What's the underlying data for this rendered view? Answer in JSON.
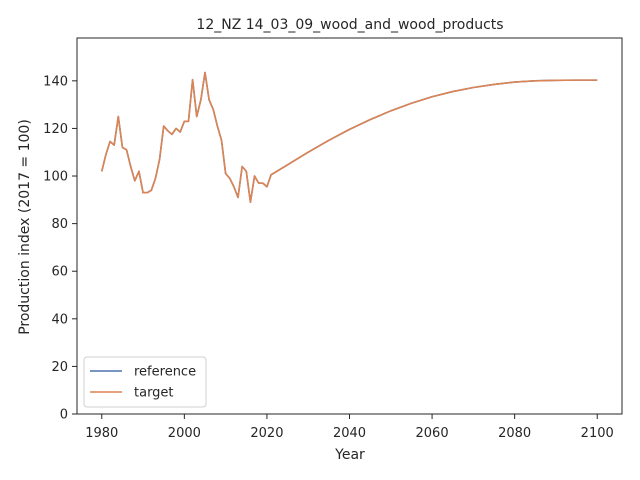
{
  "chart_data": {
    "type": "line",
    "title": "12_NZ 14_03_09_wood_and_wood_products",
    "xlabel": "Year",
    "ylabel": "Production index (2017 = 100)",
    "xlim": [
      1974,
      2106
    ],
    "ylim": [
      0,
      158
    ],
    "xticks": [
      1980,
      2000,
      2020,
      2040,
      2060,
      2080,
      2100
    ],
    "yticks": [
      0,
      20,
      40,
      60,
      80,
      100,
      120,
      140
    ],
    "grid": false,
    "legend_position": "lower left",
    "series": [
      {
        "name": "reference",
        "color": "#4c72b0",
        "x": [
          1980,
          1981,
          1982,
          1983,
          1984,
          1985,
          1986,
          1987,
          1988,
          1989,
          1990,
          1991,
          1992,
          1993,
          1994,
          1995,
          1996,
          1997,
          1998,
          1999,
          2000,
          2001,
          2002,
          2003,
          2004,
          2005,
          2006,
          2007,
          2008,
          2009,
          2010,
          2011,
          2012,
          2013,
          2014,
          2015,
          2016,
          2017,
          2018,
          2019,
          2020,
          2021,
          2025,
          2030,
          2035,
          2040,
          2045,
          2050,
          2055,
          2060,
          2065,
          2070,
          2075,
          2080,
          2085,
          2090,
          2095,
          2100
        ],
        "y": [
          102,
          109,
          114.5,
          113,
          125,
          112,
          111,
          104,
          98,
          102,
          93,
          93,
          94,
          99,
          107,
          121,
          119,
          117.5,
          120,
          118.5,
          123,
          123,
          140.5,
          125,
          132,
          143.5,
          132,
          128,
          121,
          115,
          101,
          99,
          95.5,
          91,
          104,
          102,
          89,
          100,
          97,
          97,
          95.5,
          100.5,
          104.7,
          110,
          115,
          119.6,
          123.7,
          127.4,
          130.6,
          133.3,
          135.5,
          137.2,
          138.5,
          139.5,
          140,
          140.2,
          140.3,
          140.3
        ]
      },
      {
        "name": "target",
        "color": "#dd8452",
        "x": [
          1980,
          1981,
          1982,
          1983,
          1984,
          1985,
          1986,
          1987,
          1988,
          1989,
          1990,
          1991,
          1992,
          1993,
          1994,
          1995,
          1996,
          1997,
          1998,
          1999,
          2000,
          2001,
          2002,
          2003,
          2004,
          2005,
          2006,
          2007,
          2008,
          2009,
          2010,
          2011,
          2012,
          2013,
          2014,
          2015,
          2016,
          2017,
          2018,
          2019,
          2020,
          2021,
          2025,
          2030,
          2035,
          2040,
          2045,
          2050,
          2055,
          2060,
          2065,
          2070,
          2075,
          2080,
          2085,
          2090,
          2095,
          2100
        ],
        "y": [
          102,
          109,
          114.5,
          113,
          125,
          112,
          111,
          104,
          98,
          102,
          93,
          93,
          94,
          99,
          107,
          121,
          119,
          117.5,
          120,
          118.5,
          123,
          123,
          140.5,
          125,
          132,
          143.5,
          132,
          128,
          121,
          115,
          101,
          99,
          95.5,
          91,
          104,
          102,
          89,
          100,
          97,
          97,
          95.5,
          100.5,
          104.7,
          110,
          115,
          119.6,
          123.7,
          127.4,
          130.6,
          133.3,
          135.5,
          137.2,
          138.5,
          139.5,
          140,
          140.2,
          140.3,
          140.3
        ]
      }
    ]
  }
}
